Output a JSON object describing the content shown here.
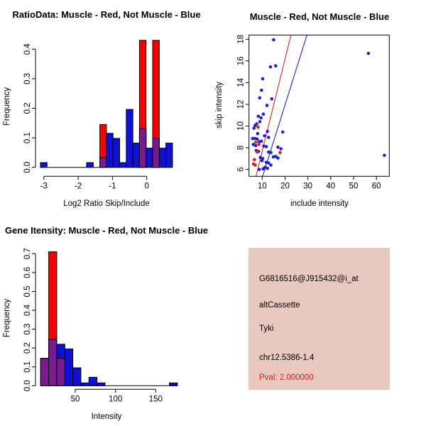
{
  "window": {
    "background": "#FFFFFF"
  },
  "chart_data": [
    {
      "id": "ratio_histogram",
      "type": "bar",
      "title": "RatioData: Muscle - Red, Not Muscle - Blue",
      "xlabel": "Log2 Ratio Skip/Include",
      "ylabel": "Frequency",
      "xticks": [
        "-3",
        "-2",
        "-1",
        "0"
      ],
      "yticks": [
        "0.0",
        "0.1",
        "0.2",
        "0.3",
        "0.4"
      ],
      "xlim": [
        -3.35,
        0.85
      ],
      "ylim": [
        0,
        0.445
      ],
      "bin_width": 0.1925,
      "grid": false,
      "legend_note": "red = Muscle, blue = Not Muscle, purple = overlap",
      "overlap_color": "#7A1B8F",
      "series": [
        {
          "name": "Not Muscle",
          "color": "#1111D6",
          "bars": [
            [
              -3.1,
              0.016
            ],
            [
              -1.7525,
              0.016
            ],
            [
              -1.3675,
              0.033
            ],
            [
              -1.175,
              0.115
            ],
            [
              -0.9825,
              0.098
            ],
            [
              -0.79,
              0.016
            ],
            [
              -0.5975,
              0.196
            ],
            [
              -0.405,
              0.082
            ],
            [
              -0.2125,
              0.131
            ],
            [
              -0.02,
              0.065
            ],
            [
              0.1725,
              0.098
            ],
            [
              0.365,
              0.065
            ],
            [
              0.5575,
              0.082
            ]
          ]
        },
        {
          "name": "Muscle",
          "color": "#FB0000",
          "bars": [
            [
              -1.3675,
              0.145
            ],
            [
              -0.2125,
              0.43
            ],
            [
              0.1725,
              0.43
            ]
          ]
        }
      ]
    },
    {
      "id": "skip_vs_include_scatter",
      "type": "scatter",
      "title": "Muscle - Red, Not Muscle - Blue",
      "xlabel": "include intensity",
      "ylabel": "skip intensity",
      "xticks": [
        "10",
        "20",
        "30",
        "40",
        "50",
        "60"
      ],
      "yticks": [
        "6",
        "8",
        "10",
        "12",
        "14",
        "16",
        "18"
      ],
      "xlim": [
        4.2,
        65.6
      ],
      "ylim": [
        5.37,
        18.39
      ],
      "grid": false,
      "series": [
        {
          "name": "Not Muscle",
          "color": "#2222CC",
          "points": [
            [
              15,
              17.95
            ],
            [
              56.5,
              16.7
            ],
            [
              15.9,
              15.55
            ],
            [
              13.6,
              15.45
            ],
            [
              10.2,
              14.35
            ],
            [
              9.7,
              13.3
            ],
            [
              8.9,
              12.6
            ],
            [
              14.2,
              12.5
            ],
            [
              12.1,
              11.9
            ],
            [
              10.5,
              11.1
            ],
            [
              8.3,
              10.9
            ],
            [
              9.5,
              10.75
            ],
            [
              9.0,
              10.4
            ],
            [
              7.6,
              10.2
            ],
            [
              6.9,
              10.05
            ],
            [
              6.4,
              9.8
            ],
            [
              12.3,
              9.5
            ],
            [
              19.0,
              9.45
            ],
            [
              8.0,
              9.3
            ],
            [
              11.0,
              9.1
            ],
            [
              12.8,
              8.95
            ],
            [
              5.8,
              8.85
            ],
            [
              6.8,
              8.85
            ],
            [
              7.8,
              8.8
            ],
            [
              9.7,
              8.6
            ],
            [
              8.7,
              8.55
            ],
            [
              6.1,
              8.3
            ],
            [
              7.1,
              8.2
            ],
            [
              10.7,
              8.15
            ],
            [
              11.8,
              8.1
            ],
            [
              16.9,
              8.05
            ],
            [
              18.2,
              7.9
            ],
            [
              7.4,
              7.75
            ],
            [
              8.4,
              7.65
            ],
            [
              12.8,
              7.6
            ],
            [
              13.8,
              7.55
            ],
            [
              15.9,
              7.2
            ],
            [
              14.9,
              7.15
            ],
            [
              9.2,
              7.1
            ],
            [
              16.9,
              7.05
            ],
            [
              10.2,
              7.0
            ],
            [
              9.9,
              6.8
            ],
            [
              11.8,
              6.65
            ],
            [
              12.8,
              6.6
            ],
            [
              13.8,
              6.4
            ],
            [
              11.2,
              6.2
            ],
            [
              12.3,
              6.1
            ],
            [
              10.4,
              6.05
            ],
            [
              8.7,
              6.0
            ],
            [
              63.5,
              7.3
            ]
          ]
        },
        {
          "name": "Muscle",
          "color": "#E02020",
          "points": [
            [
              8.2,
              9.9
            ],
            [
              7.2,
              8.5
            ],
            [
              8.5,
              8.3
            ],
            [
              7.8,
              7.6
            ],
            [
              17.8,
              7.55
            ],
            [
              6.6,
              6.9
            ],
            [
              6.2,
              6.5
            ],
            [
              6.9,
              6.4
            ]
          ]
        }
      ],
      "lines": [
        {
          "name": "muscle-fit-line",
          "color": "#DD3333",
          "from": [
            7.3,
            5.37
          ],
          "to": [
            22.6,
            18.39
          ]
        },
        {
          "name": "not-muscle-fit-line",
          "color": "#3333BB",
          "from": [
            10.2,
            5.37
          ],
          "to": [
            29.6,
            18.39
          ]
        }
      ]
    },
    {
      "id": "gene_intensity_histogram",
      "type": "bar",
      "title": "Gene Itensity: Muscle - Red, Not Muscle - Blue",
      "xlabel": "Intensity",
      "ylabel": "Frequency",
      "xticks": [
        "50",
        "100",
        "150"
      ],
      "yticks": [
        "0.0",
        "0.1",
        "0.2",
        "0.3",
        "0.4",
        "0.5",
        "0.6",
        "0.7"
      ],
      "xlim": [
        1,
        178
      ],
      "ylim": [
        0,
        0.73
      ],
      "bin_width": 10,
      "grid": false,
      "legend_note": "red = Muscle, blue = Not Muscle, purple = overlap",
      "overlap_color": "#7A1B8F",
      "series": [
        {
          "name": "Not Muscle",
          "color": "#1111D6",
          "bars": [
            [
              7,
              0.145
            ],
            [
              17,
              0.245
            ],
            [
              27,
              0.22
            ],
            [
              37,
              0.195
            ],
            [
              47,
              0.095
            ],
            [
              57,
              0.015
            ],
            [
              67,
              0.045
            ],
            [
              77,
              0.015
            ],
            [
              167,
              0.015
            ]
          ]
        },
        {
          "name": "Muscle",
          "color": "#FB0000",
          "bars": [
            [
              7,
              0.145
            ],
            [
              17,
              0.71
            ],
            [
              27,
              0.145
            ]
          ]
        }
      ]
    }
  ],
  "info_panel": {
    "background": "#E9C8C0",
    "lines": [
      {
        "text": "G6816516@J915432@i_at",
        "color": "#000000"
      },
      {
        "text": "altCassette",
        "color": "#000000"
      },
      {
        "text": "Tyki",
        "color": "#000000"
      },
      {
        "text": "chr12.5386-1.4",
        "color": "#000000"
      },
      {
        "text": "Pval: 2.000000",
        "color": "#CC2222"
      }
    ]
  }
}
